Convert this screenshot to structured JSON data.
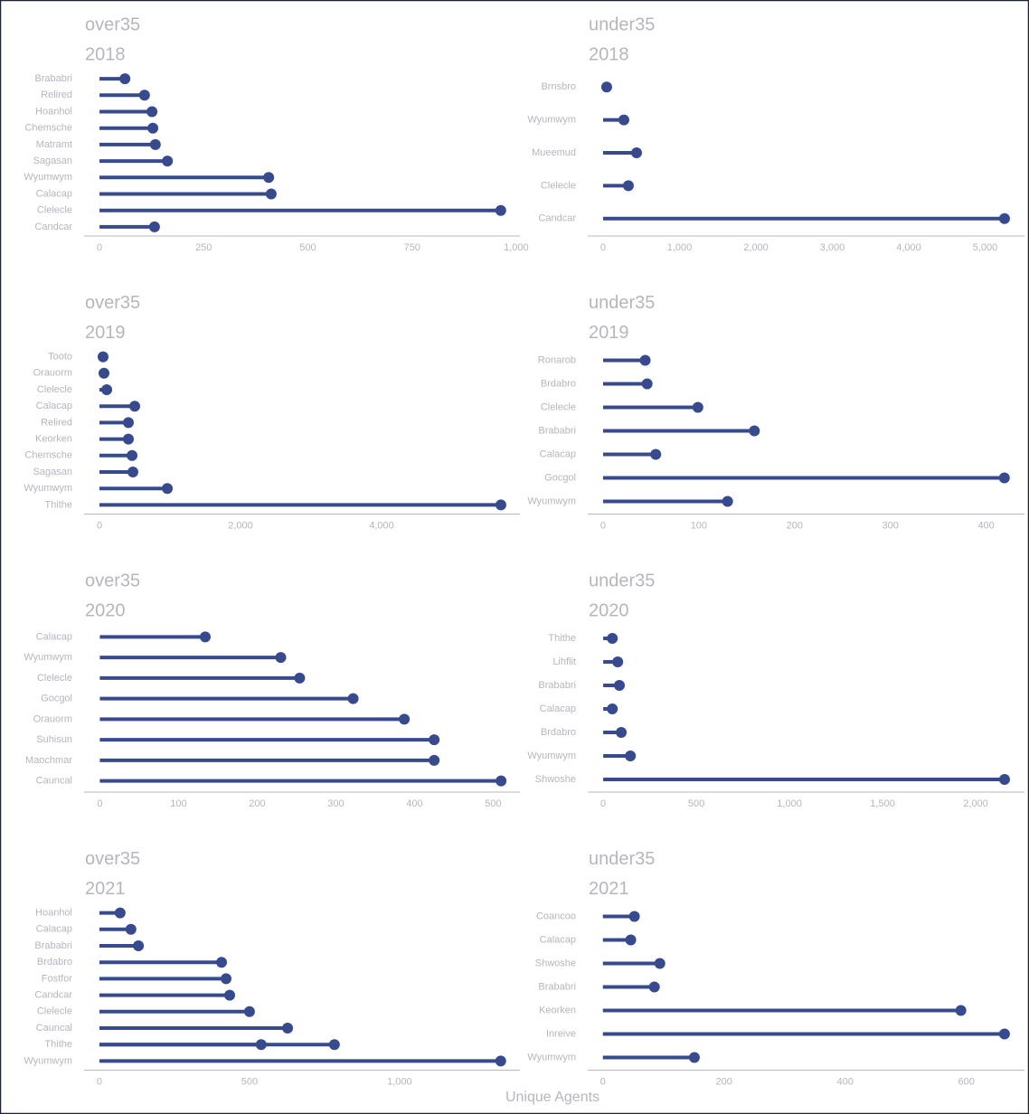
{
  "axis_label": "Unique Agents",
  "chart_data": [
    {
      "type": "lollipop",
      "title": "over35",
      "subtitle": "2018",
      "color": "#384a8e",
      "categories": [
        "Brababri",
        "Relired",
        "Hoanhol",
        "Chemsche",
        "Matramt",
        "Sagasan",
        "Wyumwym",
        "Calacap",
        "Clelecle",
        "Candcar"
      ],
      "values": [
        61,
        108,
        126,
        128,
        134,
        163,
        406,
        412,
        963,
        132
      ],
      "xlim": [
        -37,
        1009
      ],
      "xticks": [
        0,
        250,
        500,
        750,
        {
          "value": 1000,
          "label": "1,000"
        }
      ]
    },
    {
      "type": "lollipop",
      "title": "under35",
      "subtitle": "2018",
      "color": "#384a8e",
      "categories": [
        "Brnsbro",
        "Wyumwym",
        "Mueemud",
        "Clelecle",
        "Candcar"
      ],
      "values": [
        47,
        272,
        438,
        331,
        5254
      ],
      "xlim": [
        -201,
        5515
      ],
      "xticks": [
        0,
        {
          "value": 1000,
          "label": "1,000"
        },
        {
          "value": 2000,
          "label": "2,000"
        },
        {
          "value": 3000,
          "label": "3,000"
        },
        {
          "value": 4000,
          "label": "4,000"
        },
        {
          "value": 5000,
          "label": "5,000"
        }
      ]
    },
    {
      "type": "lollipop",
      "title": "over35",
      "subtitle": "2019",
      "color": "#384a8e",
      "categories": [
        "Tooto",
        "Orauorm",
        "Clelecle",
        "Calacap",
        "Relired",
        "Keorken",
        "Chemsche",
        "Sagasan",
        "Wyumwym",
        "Thithe"
      ],
      "values": [
        51,
        64,
        103,
        500,
        410,
        410,
        462,
        474,
        962,
        5692
      ],
      "xlim": [
        -218,
        5962
      ],
      "xticks": [
        0,
        {
          "value": 2000,
          "label": "2,000"
        },
        {
          "value": 4000,
          "label": "4,000"
        }
      ]
    },
    {
      "type": "lollipop",
      "title": "under35",
      "subtitle": "2019",
      "color": "#384a8e",
      "categories": [
        "Ronarob",
        "Brdabro",
        "Clelecle",
        "Brababri",
        "Calacap",
        "Gocgol",
        "Wyumwym"
      ],
      "values": [
        44,
        46,
        99,
        158,
        55,
        419,
        130
      ],
      "xlim": [
        -16,
        440
      ],
      "xticks": [
        0,
        100,
        200,
        300,
        400
      ]
    },
    {
      "type": "lollipop",
      "title": "over35",
      "subtitle": "2020",
      "color": "#384a8e",
      "categories": [
        "Calacap",
        "Wyumwym",
        "Clelecle",
        "Gocgol",
        "Orauorm",
        "Suhisun",
        "Maochmar",
        "Cauncal"
      ],
      "values": [
        134,
        230,
        254,
        322,
        387,
        425,
        425,
        510
      ],
      "xlim": [
        -20,
        534
      ],
      "xticks": [
        0,
        100,
        200,
        300,
        400,
        500
      ]
    },
    {
      "type": "lollipop",
      "title": "under35",
      "subtitle": "2020",
      "color": "#384a8e",
      "categories": [
        "Thithe",
        "Lihflit",
        "Brababri",
        "Calacap",
        "Brdabro",
        "Wyumwym",
        "Shwoshe"
      ],
      "values": [
        49,
        78,
        87,
        49,
        97,
        146,
        2155
      ],
      "xlim": [
        -83,
        2262
      ],
      "xticks": [
        0,
        500,
        {
          "value": 1000,
          "label": "1,000"
        },
        {
          "value": 1500,
          "label": "1,500"
        },
        {
          "value": 2000,
          "label": "2,000"
        }
      ]
    },
    {
      "type": "lollipop",
      "title": "over35",
      "subtitle": "2021",
      "color": "#384a8e",
      "categories": [
        "Hoanhol",
        "Calacap",
        "Brababri",
        "Brdabro",
        "Fostfor",
        "Candcar",
        "Clelecle",
        "Cauncal",
        "Thithe",
        "Thithe",
        "Wyumwym"
      ],
      "values": [
        69,
        105,
        130,
        407,
        422,
        434,
        500,
        627,
        783,
        539,
        1337
      ],
      "xlim": [
        -51,
        1401
      ],
      "xticks": [
        0,
        500,
        {
          "value": 1000,
          "label": "1,000"
        }
      ]
    },
    {
      "type": "lollipop",
      "title": "under35",
      "subtitle": "2021",
      "color": "#384a8e",
      "categories": [
        "Coancoo",
        "Calacap",
        "Shwoshe",
        "Brababri",
        "Keorken",
        "Inreive",
        "Wyumwym"
      ],
      "values": [
        52,
        46,
        94,
        85,
        591,
        663,
        151
      ],
      "xlim": [
        -25,
        696
      ],
      "xticks": [
        0,
        200,
        400,
        600
      ]
    }
  ]
}
